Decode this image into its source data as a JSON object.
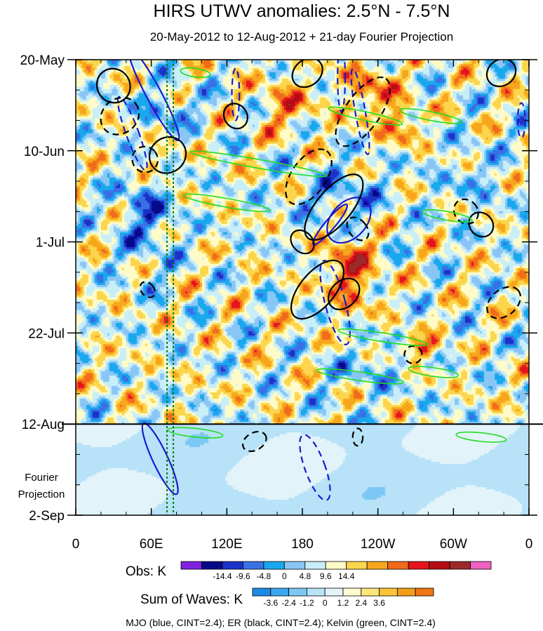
{
  "chart_data": {
    "type": "heatmap",
    "title": "HIRS UTWV anomalies: 2.5°N - 7.5°N",
    "subtitle": "20-May-2012 to 12-Aug-2012 + 21-day Fourier Projection",
    "x_tick_labels": [
      "0",
      "60E",
      "120E",
      "180",
      "120W",
      "60W",
      "0"
    ],
    "x_range_deg": [
      0,
      360
    ],
    "y_tick_labels": [
      "20-May",
      "10-Jun",
      "1-Jul",
      "22-Jul",
      "12-Aug",
      "2-Sep"
    ],
    "y_range_days": [
      0,
      105
    ],
    "projection_label": [
      "Fourier",
      "Projection"
    ],
    "projection_start_day": 84,
    "marker_lines_lon": [
      72.5,
      77.5
    ],
    "obs_legend": {
      "title": "Obs: K",
      "colors": [
        "#7e22e0",
        "#060a8a",
        "#1932c8",
        "#3a70e6",
        "#18a8ee",
        "#8ac6f5",
        "#c8eef8",
        "#fefbc8",
        "#fbd54c",
        "#f7a61c",
        "#f26a1c",
        "#e6141c",
        "#b40c14",
        "#9c2a2a",
        "#f060c0"
      ],
      "labels": [
        "-14.4",
        "-9.6",
        "-4.8",
        "0",
        "4.8",
        "9.6",
        "14.4"
      ]
    },
    "waves_legend": {
      "title": "Sum of Waves: K",
      "colors": [
        "#1f8ae6",
        "#3aa6ee",
        "#7cc8f4",
        "#b8e2f8",
        "#e2f4fa",
        "#fdfbd0",
        "#fce67a",
        "#f9c43a",
        "#f39c1a",
        "#ef7612"
      ],
      "labels": [
        "-3.6",
        "-2.4",
        "-1.2",
        "0",
        "1.2",
        "2.4",
        "3.6"
      ]
    },
    "contour_legend": "MJO (blue, CINT=2.4); ER (black, CINT=2.4); Kelvin (green, CINT=2.4)",
    "series": [
      {
        "name": "MJO",
        "color": "#1a1ad0",
        "cint": 2.4
      },
      {
        "name": "ER",
        "color": "#000000",
        "cint": 2.4
      },
      {
        "name": "Kelvin",
        "color": "#22dd22",
        "cint": 2.4
      }
    ],
    "features": [
      {
        "wave": "MJO",
        "sign": "pos",
        "lon": 62,
        "day": 8,
        "semi_lon": 6,
        "semi_day": 12,
        "tilt": -28
      },
      {
        "wave": "MJO",
        "sign": "neg",
        "lon": 45,
        "day": 17,
        "semi_lon": 5,
        "semi_day": 9,
        "tilt": -20
      },
      {
        "wave": "MJO",
        "sign": "neg",
        "lon": 127,
        "day": 8,
        "semi_lon": 3,
        "semi_day": 6,
        "tilt": 0
      },
      {
        "wave": "MJO",
        "sign": "neg",
        "lon": 211,
        "day": 4,
        "semi_lon": 3,
        "semi_day": 8,
        "tilt": 0
      },
      {
        "wave": "MJO",
        "sign": "neg",
        "lon": 226,
        "day": 12,
        "semi_lon": 4,
        "semi_day": 10,
        "tilt": -10
      },
      {
        "wave": "MJO",
        "sign": "neg",
        "lon": 354,
        "day": 14,
        "semi_lon": 3,
        "semi_day": 4,
        "tilt": 0
      },
      {
        "wave": "MJO",
        "sign": "pos",
        "lon": 217,
        "day": 37,
        "semi_lon": 14,
        "semi_day": 6,
        "tilt": 42
      },
      {
        "wave": "MJO",
        "sign": "pos",
        "lon": 202,
        "day": 38,
        "semi_lon": 4,
        "semi_day": 6,
        "tilt": 40
      },
      {
        "wave": "MJO",
        "sign": "neg",
        "lon": 206,
        "day": 56,
        "semi_lon": 8,
        "semi_day": 10,
        "tilt": -15
      },
      {
        "wave": "MJO",
        "sign": "pos",
        "lon": 67,
        "day": 92,
        "semi_lon": 6,
        "semi_day": 9,
        "tilt": -25
      },
      {
        "wave": "MJO",
        "sign": "neg",
        "lon": 190,
        "day": 94,
        "semi_lon": 8,
        "semi_day": 8,
        "tilt": -20
      },
      {
        "wave": "ER",
        "sign": "pos",
        "lon": 30,
        "day": 6,
        "semi_lon": 13,
        "semi_day": 4,
        "tilt": -35
      },
      {
        "wave": "ER",
        "sign": "neg",
        "lon": 35,
        "day": 13,
        "semi_lon": 16,
        "semi_day": 4,
        "tilt": -38
      },
      {
        "wave": "ER",
        "sign": "neg",
        "lon": 55,
        "day": 23,
        "semi_lon": 10,
        "semi_day": 3,
        "tilt": -40
      },
      {
        "wave": "ER",
        "sign": "pos",
        "lon": 73,
        "day": 22,
        "semi_lon": 15,
        "semi_day": 4,
        "tilt": -42
      },
      {
        "wave": "ER",
        "sign": "pos",
        "lon": 127,
        "day": 13,
        "semi_lon": 9,
        "semi_day": 3,
        "tilt": -35
      },
      {
        "wave": "ER",
        "sign": "pos",
        "lon": 184,
        "day": 3,
        "semi_lon": 13,
        "semi_day": 3,
        "tilt": -40
      },
      {
        "wave": "ER",
        "sign": "neg",
        "lon": 185,
        "day": 27,
        "semi_lon": 25,
        "semi_day": 4,
        "tilt": -55
      },
      {
        "wave": "ER",
        "sign": "neg",
        "lon": 228,
        "day": 12,
        "semi_lon": 32,
        "semi_day": 4,
        "tilt": -55
      },
      {
        "wave": "ER",
        "sign": "pos",
        "lon": 205,
        "day": 34,
        "semi_lon": 32,
        "semi_day": 4,
        "tilt": -50
      },
      {
        "wave": "ER",
        "sign": "pos",
        "lon": 180,
        "day": 42,
        "semi_lon": 8,
        "semi_day": 3,
        "tilt": -45
      },
      {
        "wave": "ER",
        "sign": "pos",
        "lon": 192,
        "day": 53,
        "semi_lon": 28,
        "semi_day": 4,
        "tilt": -50
      },
      {
        "wave": "ER",
        "sign": "pos",
        "lon": 213,
        "day": 54,
        "semi_lon": 14,
        "semi_day": 3,
        "tilt": -45
      },
      {
        "wave": "ER",
        "sign": "neg",
        "lon": 224,
        "day": 39,
        "semi_lon": 7,
        "semi_day": 3,
        "tilt": -40
      },
      {
        "wave": "ER",
        "sign": "neg",
        "lon": 310,
        "day": 35,
        "semi_lon": 9,
        "semi_day": 3,
        "tilt": -45
      },
      {
        "wave": "ER",
        "sign": "pos",
        "lon": 322,
        "day": 38,
        "semi_lon": 9,
        "semi_day": 3,
        "tilt": -45
      },
      {
        "wave": "ER",
        "sign": "neg",
        "lon": 340,
        "day": 56,
        "semi_lon": 15,
        "semi_day": 3,
        "tilt": -40
      },
      {
        "wave": "ER",
        "sign": "pos",
        "lon": 338,
        "day": 3,
        "semi_lon": 12,
        "semi_day": 3,
        "tilt": -35
      },
      {
        "wave": "ER",
        "sign": "neg",
        "lon": 57,
        "day": 53,
        "semi_lon": 5,
        "semi_day": 2,
        "tilt": -40
      },
      {
        "wave": "ER",
        "sign": "neg",
        "lon": 268,
        "day": 68,
        "semi_lon": 7,
        "semi_day": 2,
        "tilt": -40
      },
      {
        "wave": "ER",
        "sign": "neg",
        "lon": 142,
        "day": 88,
        "semi_lon": 10,
        "semi_day": 2,
        "tilt": -30
      },
      {
        "wave": "ER",
        "sign": "neg",
        "lon": 224,
        "day": 87,
        "semi_lon": 4,
        "semi_day": 2,
        "tilt": 0
      },
      {
        "wave": "Kelvin",
        "sign": "pos",
        "lon": 95,
        "day": 3,
        "semi_lon": 12,
        "semi_day": 1,
        "tilt": 8
      },
      {
        "wave": "Kelvin",
        "sign": "pos",
        "lon": 230,
        "day": 13,
        "semi_lon": 30,
        "semi_day": 1,
        "tilt": 12
      },
      {
        "wave": "Kelvin",
        "sign": "pos",
        "lon": 282,
        "day": 13,
        "semi_lon": 25,
        "semi_day": 1,
        "tilt": 11
      },
      {
        "wave": "Kelvin",
        "sign": "pos",
        "lon": 145,
        "day": 24,
        "semi_lon": 55,
        "semi_day": 1,
        "tilt": 10
      },
      {
        "wave": "Kelvin",
        "sign": "pos",
        "lon": 120,
        "day": 33,
        "semi_lon": 35,
        "semi_day": 1,
        "tilt": 10
      },
      {
        "wave": "Kelvin",
        "sign": "pos",
        "lon": 295,
        "day": 36,
        "semi_lon": 20,
        "semi_day": 1,
        "tilt": 10
      },
      {
        "wave": "Kelvin",
        "sign": "pos",
        "lon": 244,
        "day": 64,
        "semi_lon": 36,
        "semi_day": 1,
        "tilt": 9
      },
      {
        "wave": "Kelvin",
        "sign": "pos",
        "lon": 226,
        "day": 73,
        "semi_lon": 35,
        "semi_day": 1,
        "tilt": 8
      },
      {
        "wave": "Kelvin",
        "sign": "pos",
        "lon": 284,
        "day": 72,
        "semi_lon": 20,
        "semi_day": 1,
        "tilt": 8
      },
      {
        "wave": "Kelvin",
        "sign": "pos",
        "lon": 95,
        "day": 86,
        "semi_lon": 22,
        "semi_day": 1,
        "tilt": 6
      },
      {
        "wave": "Kelvin",
        "sign": "pos",
        "lon": 322,
        "day": 87,
        "semi_lon": 20,
        "semi_day": 1,
        "tilt": 6
      }
    ]
  }
}
